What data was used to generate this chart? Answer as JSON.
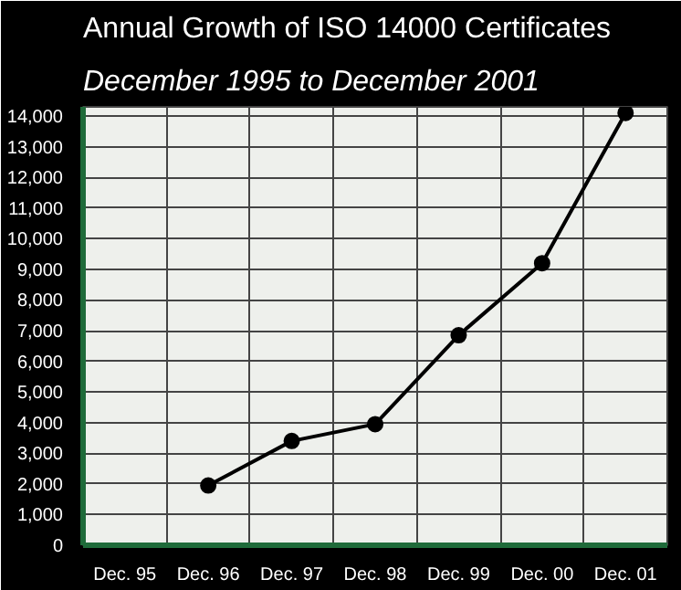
{
  "chart_data": {
    "type": "line",
    "title": "Annual Growth of ISO 14000 Certificates",
    "subtitle": "December 1995 to December 2001",
    "categories": [
      "Dec. 95",
      "Dec. 96",
      "Dec. 97",
      "Dec. 98",
      "Dec. 99",
      "Dec. 00",
      "Dec. 01"
    ],
    "series": [
      {
        "color": "#000000",
        "values": [
          null,
          1950,
          3400,
          3950,
          6850,
          9200,
          14100
        ]
      }
    ],
    "ylim": [
      0,
      14300
    ],
    "yticks": [
      {
        "value": 0,
        "label": "0"
      },
      {
        "value": 1000,
        "label": "1,000"
      },
      {
        "value": 2000,
        "label": "2,000"
      },
      {
        "value": 3000,
        "label": "3,000"
      },
      {
        "value": 4000,
        "label": "4,000"
      },
      {
        "value": 5000,
        "label": "5,000"
      },
      {
        "value": 6000,
        "label": "6,000"
      },
      {
        "value": 7000,
        "label": "7,000"
      },
      {
        "value": 8000,
        "label": "8,000"
      },
      {
        "value": 9000,
        "label": "9,000"
      },
      {
        "value": 10000,
        "label": "10,000"
      },
      {
        "value": 11000,
        "label": "11,000"
      },
      {
        "value": 12000,
        "label": "12,000"
      },
      {
        "value": 13000,
        "label": "13,000"
      },
      {
        "value": 14000,
        "label": "14,000"
      }
    ],
    "grid": true,
    "marker": "circle",
    "line_style": "solid"
  }
}
